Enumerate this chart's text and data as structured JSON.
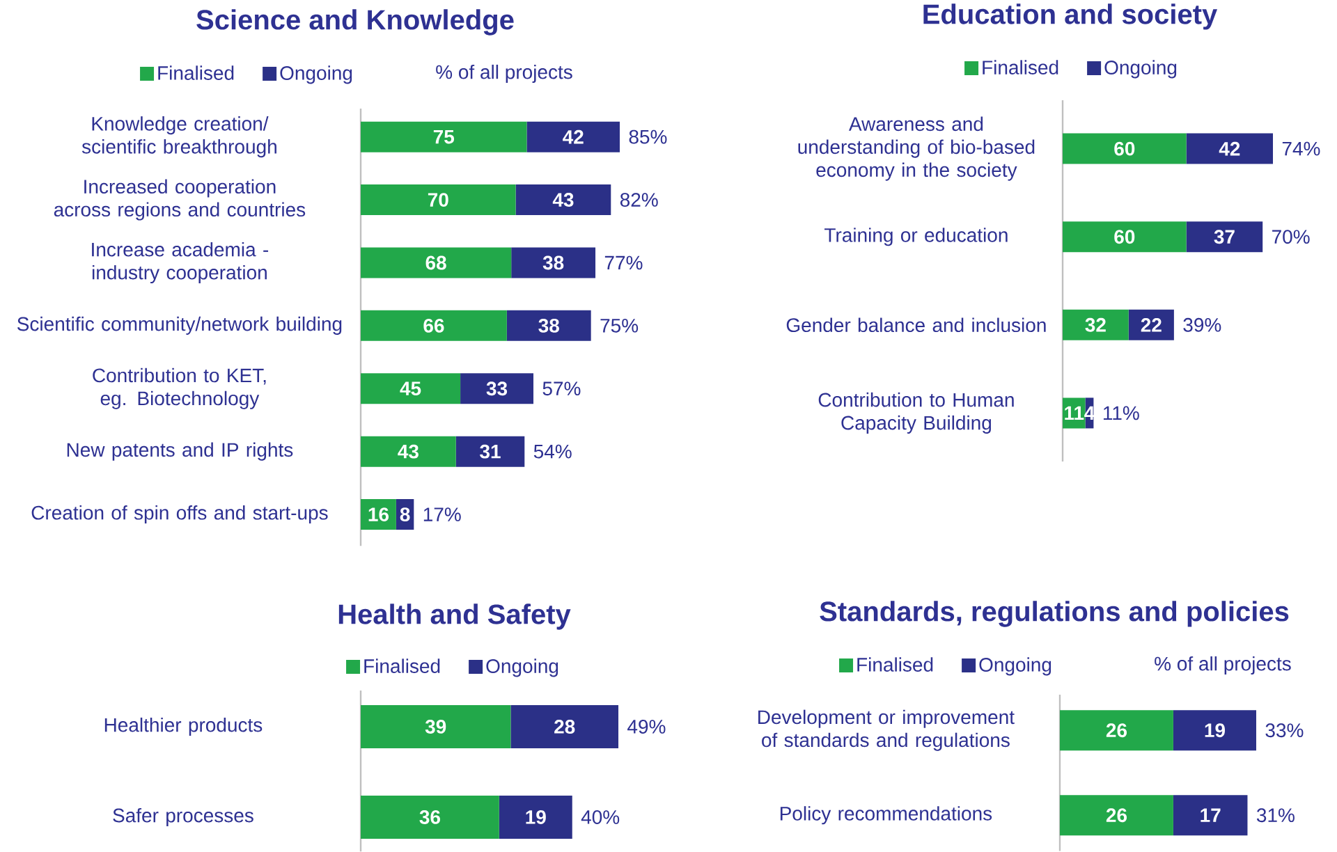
{
  "chart_data": [
    {
      "type": "bar",
      "orientation": "horizontal",
      "stacked": true,
      "title": "Science and Knowledge",
      "categories": [
        "Knowledge creation/ scientific breakthrough",
        "Increased cooperation across regions and countries",
        "Increase academia - industry cooperation",
        "Scientific community/network building",
        "Contribution to KET, eg. Biotechnology",
        "New patents and IP rights",
        "Creation of spin offs and start-ups"
      ],
      "series": [
        {
          "name": "Finalised",
          "color": "#22a84a",
          "values": [
            75,
            70,
            68,
            66,
            45,
            43,
            16
          ]
        },
        {
          "name": "Ongoing",
          "color": "#2b3087",
          "values": [
            42,
            43,
            38,
            38,
            33,
            31,
            8
          ]
        }
      ],
      "annotations": [
        "% of all projects",
        {
          "text": "85%",
          "x": 117,
          "y": "Knowledge creation/ scientific breakthrough"
        },
        {
          "text": "82%",
          "x": 113,
          "y": "Increased cooperation across regions and countries"
        },
        {
          "text": "77%",
          "x": 106,
          "y": "Increase academia - industry cooperation"
        },
        {
          "text": "75%",
          "x": 104,
          "y": "Scientific community/network building"
        },
        {
          "text": "57%",
          "x": 78,
          "y": "Contribution to KET, eg. Biotechnology"
        },
        {
          "text": "54%",
          "x": 74,
          "y": "New patents and IP rights"
        },
        {
          "text": "17%",
          "x": 24,
          "y": "Creation of spin offs and start-ups"
        }
      ],
      "data_labels": true,
      "legend": "top",
      "tick_labels": "y"
    },
    {
      "type": "bar",
      "orientation": "horizontal",
      "stacked": true,
      "title": "Education and society",
      "categories": [
        "Awareness and understanding of bio-based economy in the society",
        "Training or education",
        "Gender balance and inclusion",
        "Contribution to Human Capacity Building"
      ],
      "series": [
        {
          "name": "Finalised",
          "color": "#22a84a",
          "values": [
            60,
            60,
            32,
            11
          ]
        },
        {
          "name": "Ongoing",
          "color": "#2b3087",
          "values": [
            42,
            37,
            22,
            4
          ]
        }
      ],
      "annotations": [
        {
          "text": "74%",
          "x": 102,
          "y": "Awareness and understanding of bio-based economy in the society"
        },
        {
          "text": "70%",
          "x": 97,
          "y": "Training or education"
        },
        {
          "text": "39%",
          "x": 54,
          "y": "Gender balance and inclusion"
        },
        {
          "text": "11%",
          "x": 15,
          "y": "Contribution to Human Capacity Building"
        }
      ],
      "data_labels": true,
      "legend": "top",
      "tick_labels": "y"
    },
    {
      "type": "bar",
      "orientation": "horizontal",
      "stacked": true,
      "title": "Health and Safety",
      "categories": [
        "Healthier products",
        "Safer processes"
      ],
      "series": [
        {
          "name": "Finalised",
          "color": "#22a84a",
          "values": [
            39,
            36
          ]
        },
        {
          "name": "Ongoing",
          "color": "#2b3087",
          "values": [
            28,
            19
          ]
        }
      ],
      "annotations": [
        {
          "text": "49%",
          "x": 67,
          "y": "Healthier products"
        },
        {
          "text": "40%",
          "x": 55,
          "y": "Safer processes"
        }
      ],
      "data_labels": true,
      "legend": "top",
      "tick_labels": "y"
    },
    {
      "type": "bar",
      "orientation": "horizontal",
      "stacked": true,
      "title": "Standards, regulations and policies",
      "categories": [
        "Development or improvement of standards and regulations",
        "Policy recommendations"
      ],
      "series": [
        {
          "name": "Finalised",
          "color": "#22a84a",
          "values": [
            26,
            26
          ]
        },
        {
          "name": "Ongoing",
          "color": "#2b3087",
          "values": [
            19,
            17
          ]
        }
      ],
      "annotations": [
        "% of all projects",
        {
          "text": "33%",
          "x": 45,
          "y": "Development or improvement of standards and regulations"
        },
        {
          "text": "31%",
          "x": 43,
          "y": "Policy recommendations"
        }
      ],
      "data_labels": true,
      "legend": "top",
      "tick_labels": "y"
    }
  ]
}
